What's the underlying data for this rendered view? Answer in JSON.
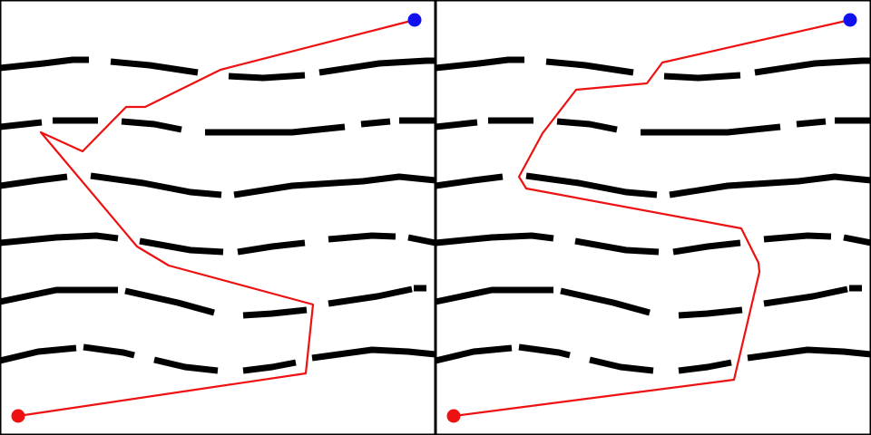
{
  "panels": [
    {
      "id": "left",
      "description_free": true
    },
    {
      "id": "right",
      "description_free": true
    }
  ],
  "colors": {
    "wall": "#000000",
    "path": "#ee1111",
    "start": "#ee1111",
    "goal": "#1111ee",
    "background": "#ffffff"
  }
}
